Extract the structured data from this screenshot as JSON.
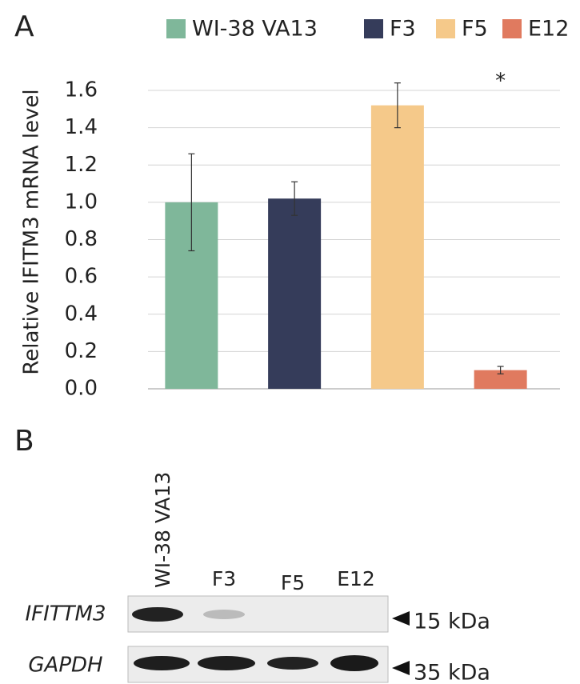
{
  "chart_data": {
    "type": "bar",
    "panel_label": "A",
    "y_label": "Relative IFITM3 mRNA level",
    "series": [
      {
        "name": "WI-38 VA13",
        "color": "#7fb79a",
        "values": [
          1.0
        ],
        "errors": [
          0.26
        ]
      },
      {
        "name": "F3",
        "color": "#353c5a",
        "values": [
          1.02
        ],
        "errors": [
          0.09
        ]
      },
      {
        "name": "F5",
        "color": "#f5c98a",
        "values": [
          1.52
        ],
        "errors": [
          0.12
        ]
      },
      {
        "name": "E12",
        "color": "#e07a5f",
        "values": [
          0.1
        ],
        "errors": [
          0.02
        ]
      }
    ],
    "annotation": "*",
    "ylim": [
      0,
      1.6
    ],
    "yticks": [
      {
        "value": 0,
        "label": "0.0"
      },
      0.2,
      0.4,
      0.6,
      0.8,
      {
        "value": 1,
        "label": "1.0"
      },
      1.2,
      1.4,
      1.6
    ],
    "grid": true
  },
  "blot": {
    "panel_label": "B",
    "lanes": [
      "WI-38 VA13",
      "F3",
      "F5",
      "E12"
    ],
    "rows": [
      {
        "label": "IFITTM3",
        "size": "15 kDa"
      },
      {
        "label": "GAPDH",
        "size": "35 kDa"
      }
    ]
  }
}
